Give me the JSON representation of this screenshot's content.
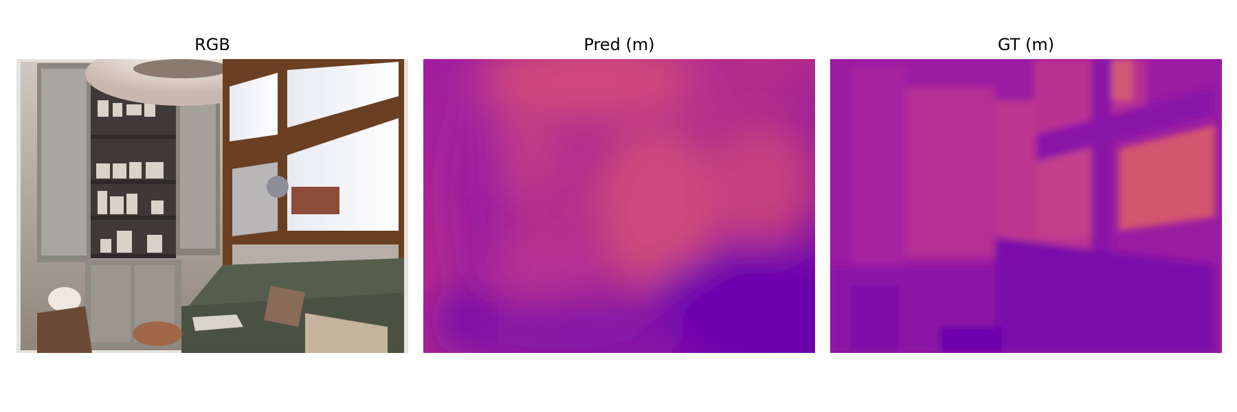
{
  "figure": {
    "panels": [
      {
        "title": "RGB",
        "kind": "photo"
      },
      {
        "title": "Pred (m)",
        "kind": "depth-map",
        "colormap": "plasma"
      },
      {
        "title": "GT (m)",
        "kind": "depth-map",
        "colormap": "plasma"
      }
    ]
  },
  "colors": {
    "background": "#ffffff",
    "plasma_dark": "#6a00a8",
    "plasma_mid": "#b12a90",
    "plasma_warm": "#d8576b"
  }
}
